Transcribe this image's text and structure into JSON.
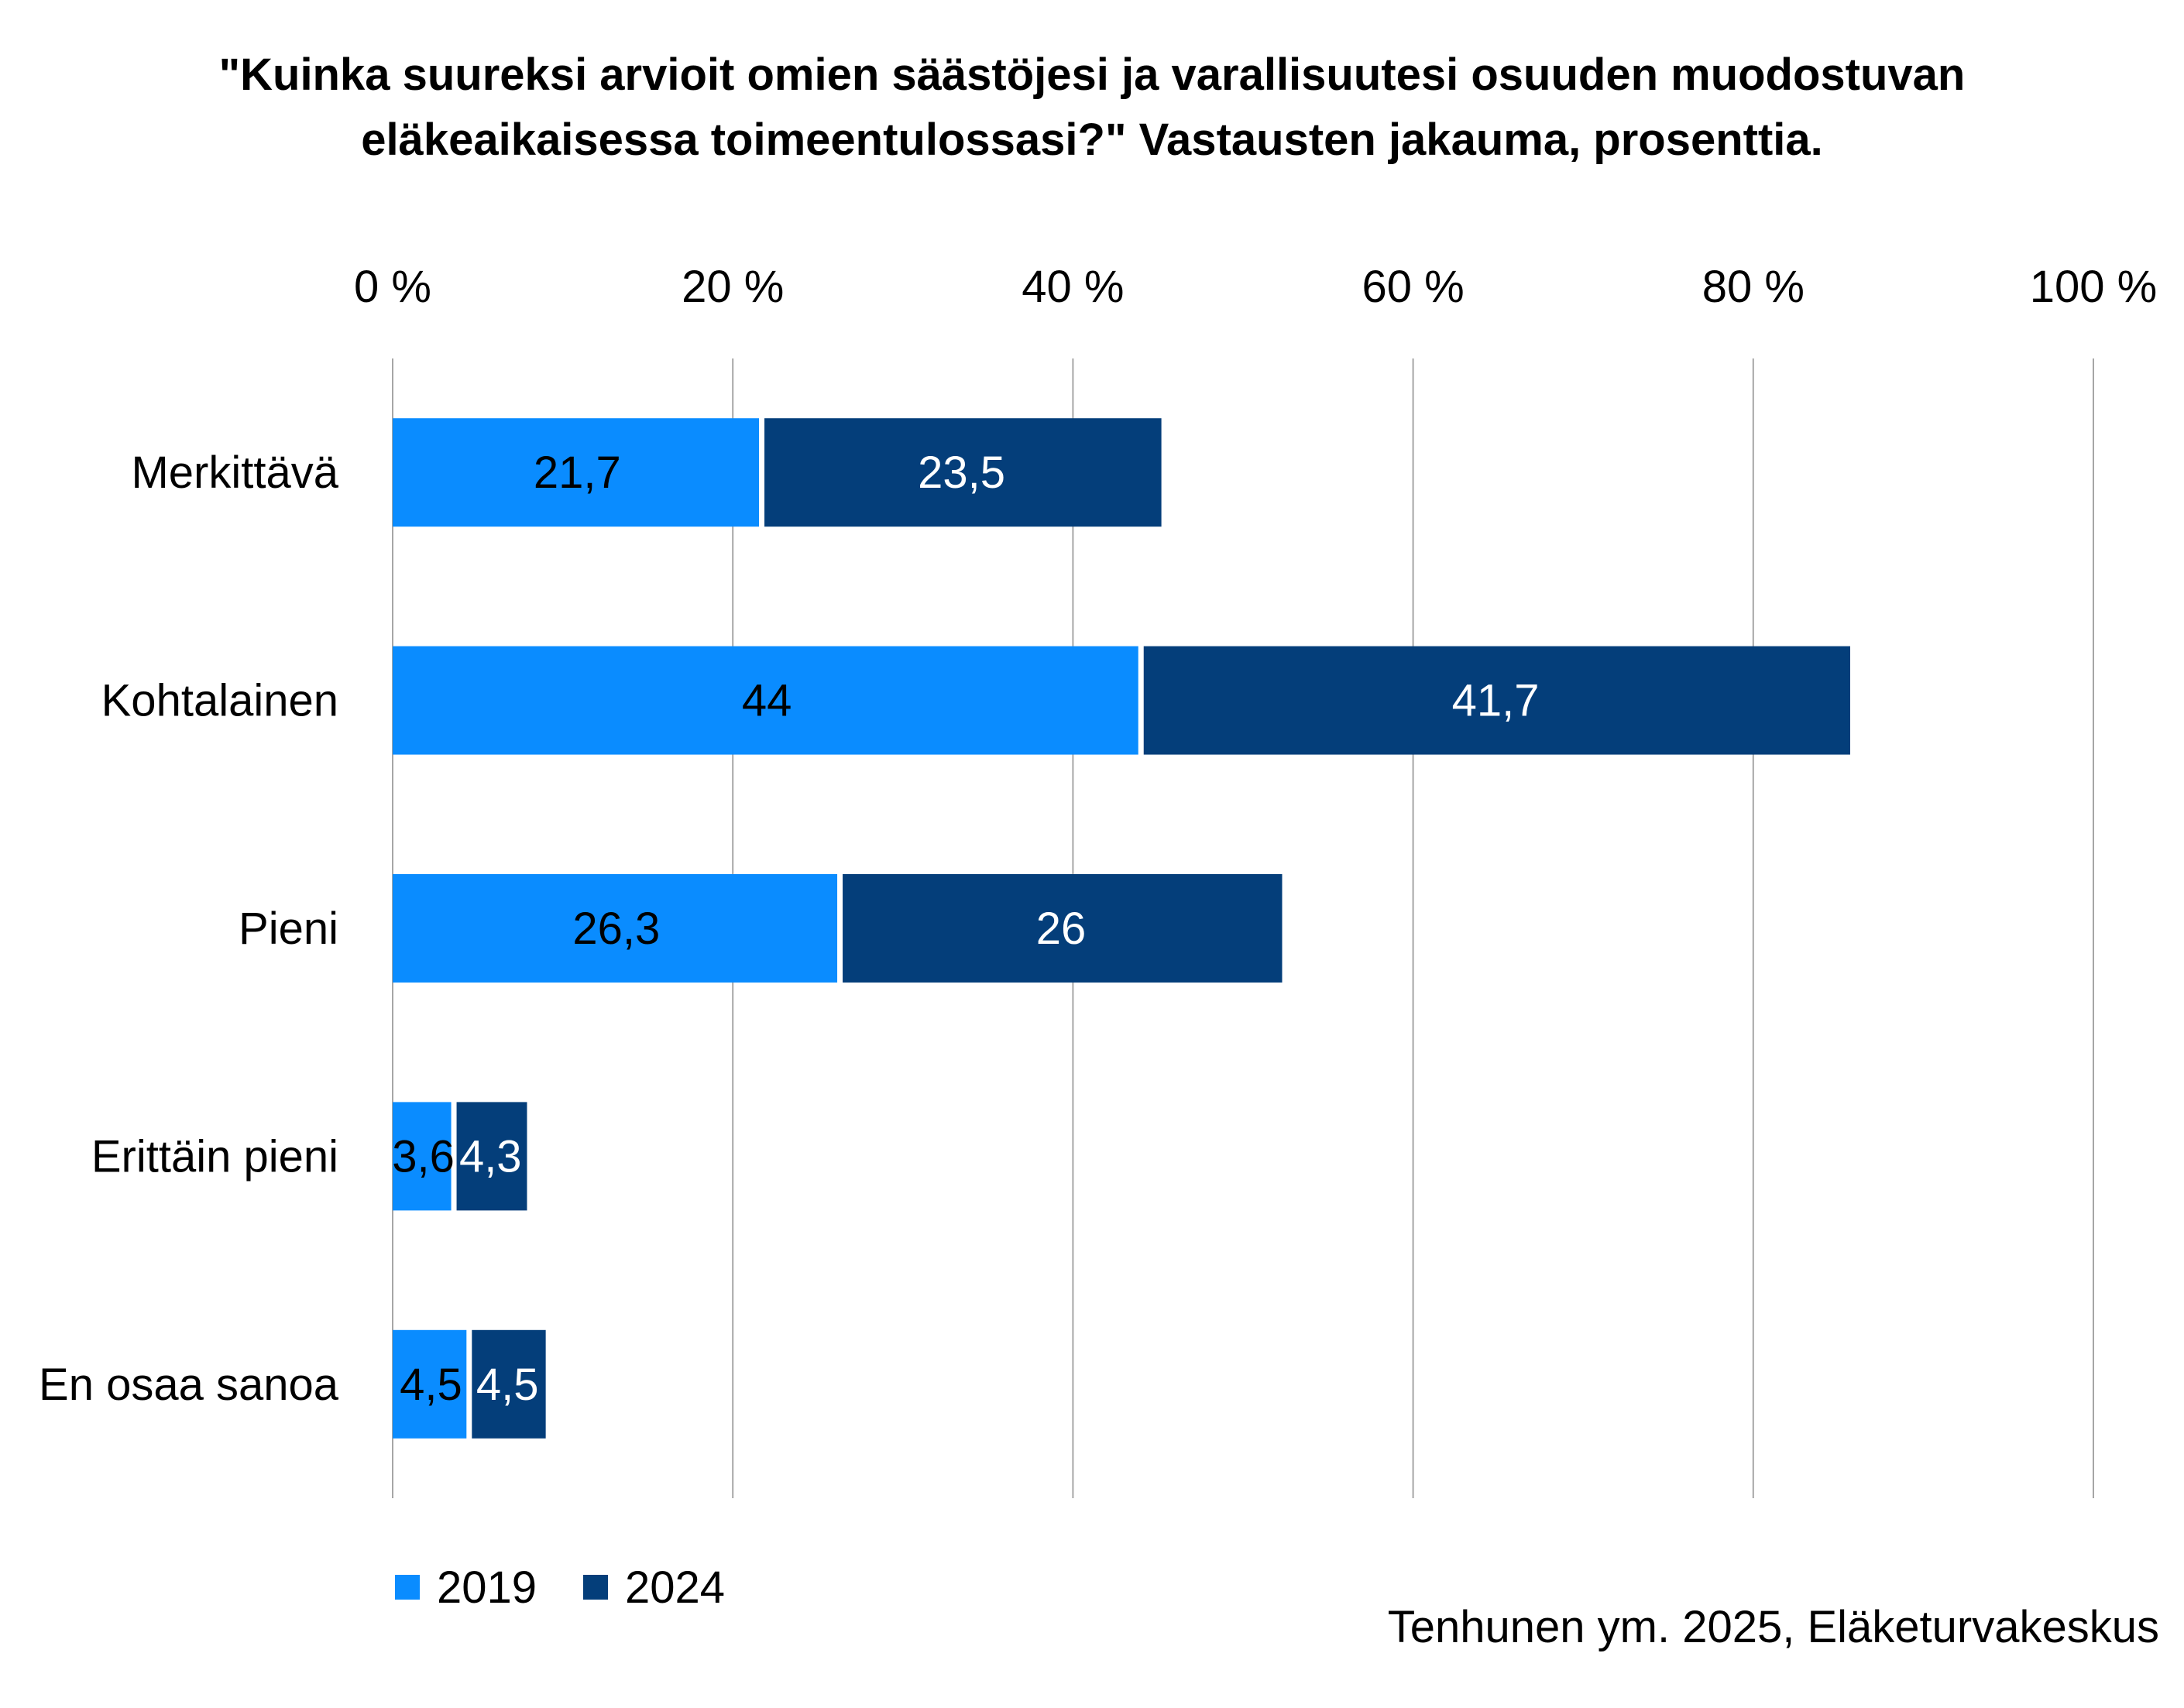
{
  "chart_data": {
    "type": "bar",
    "orientation": "horizontal",
    "stacked": true,
    "title_lines": [
      "\"Kuinka suureksi arvioit omien säästöjesi ja varallisuutesi osuuden muodostuvan",
      "eläkeaikaisessa toimeentulossasi?\"  Vastausten jakauma, prosenttia."
    ],
    "categories": [
      "Merkittävä",
      "Kohtalainen",
      "Pieni",
      "Erittäin pieni",
      "En osaa sanoa"
    ],
    "series": [
      {
        "name": "2019",
        "values": [
          21.7,
          44,
          26.3,
          3.6,
          4.5
        ],
        "labels": [
          "21,7",
          "44",
          "26,3",
          "3,6",
          "4,5"
        ],
        "color": "#0a8cff",
        "label_color": "#000000"
      },
      {
        "name": "2024",
        "values": [
          23.5,
          41.7,
          26,
          4.3,
          4.5
        ],
        "labels": [
          "23,5",
          "41,7",
          "26",
          "4,3",
          "4,5"
        ],
        "color": "#043e7a",
        "label_color": "#ffffff"
      }
    ],
    "xlim": [
      0,
      100
    ],
    "xticks": [
      "0 %",
      "20 %",
      "40 %",
      "60 %",
      "80 %",
      "100 %"
    ],
    "x_axis_position": "top",
    "grid": true,
    "legend_position": "bottom-left",
    "gridline_color": "#a6a6a6"
  },
  "source": "Tenhunen ym. 2025, Eläketurvakeskus"
}
